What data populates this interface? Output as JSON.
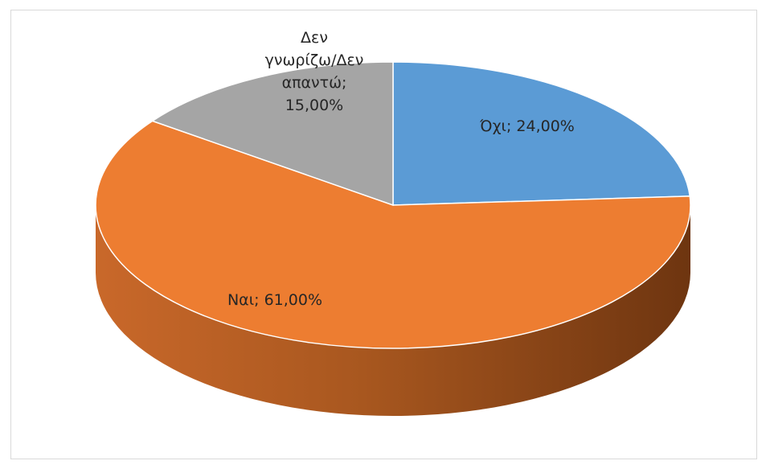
{
  "chart_data": {
    "type": "pie",
    "variant": "3d",
    "legend": "none",
    "slices": [
      {
        "label": "Όχι",
        "value": 24,
        "display": "Όχι; 24,00%",
        "color": "#5b9bd5"
      },
      {
        "label": "Ναι",
        "value": 61,
        "display": "Ναι; 61,00%",
        "color": "#ed7d31"
      },
      {
        "label": "Δεν γνωρίζω/Δεν απαντώ",
        "value": 15,
        "display_lines": [
          "Δεν",
          "γνωρίζω/Δεν",
          "απαντώ;",
          "15,00%"
        ],
        "color": "#a5a5a5"
      }
    ]
  }
}
